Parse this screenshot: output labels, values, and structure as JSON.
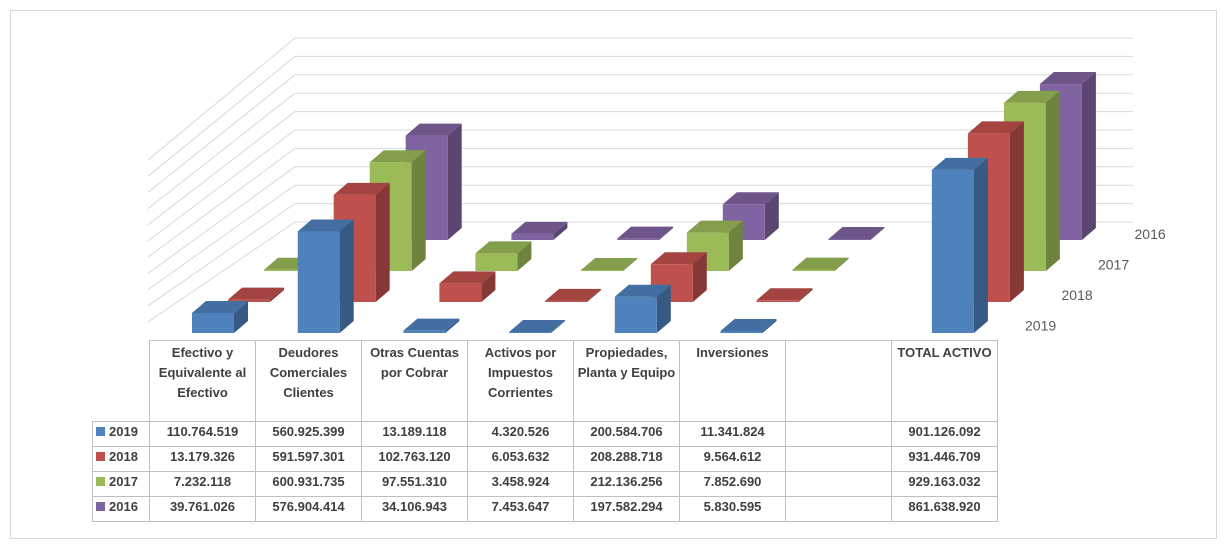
{
  "chart_data": {
    "type": "bar3d",
    "categories": [
      "Efectivo y Equivalente al Efectivo",
      "Deudores Comerciales Clientes",
      "Otras Cuentas por Cobrar",
      "Activos por Impuestos Corrientes",
      "Propiedades, Planta y Equipo",
      "Inversiones",
      null,
      "TOTAL ACTIVO"
    ],
    "ylim": [
      0,
      1000000000
    ],
    "series": [
      {
        "name": "2019",
        "color": "#4f81bd",
        "values": [
          110764519,
          560925399,
          13189118,
          4320526,
          200584706,
          11341824,
          null,
          901126092
        ],
        "value_labels": [
          "110.764.519",
          "560.925.399",
          "13.189.118",
          "4.320.526",
          "200.584.706",
          "11.341.824",
          null,
          "901.126.092"
        ]
      },
      {
        "name": "2018",
        "color": "#c0504d",
        "values": [
          13179326,
          591597301,
          102763120,
          6053632,
          208288718,
          9564612,
          null,
          931446709
        ],
        "value_labels": [
          "13.179.326",
          "591.597.301",
          "102.763.120",
          "6.053.632",
          "208.288.718",
          "9.564.612",
          null,
          "931.446.709"
        ]
      },
      {
        "name": "2017",
        "color": "#9bbb59",
        "values": [
          7232118,
          600931735,
          97551310,
          3458924,
          212136256,
          7852690,
          null,
          929163032
        ],
        "value_labels": [
          "7.232.118",
          "600.931.735",
          "97.551.310",
          "3.458.924",
          "212.136.256",
          "7.852.690",
          null,
          "929.163.032"
        ]
      },
      {
        "name": "2016",
        "color": "#8064a2",
        "values": [
          39761026,
          576904414,
          34106943,
          7453647,
          197582294,
          5830595,
          null,
          861638920
        ],
        "value_labels": [
          "39.761.026",
          "576.904.414",
          "34.106.943",
          "7.453.647",
          "197.582.294",
          "5.830.595",
          null,
          "861.638.920"
        ]
      }
    ]
  }
}
